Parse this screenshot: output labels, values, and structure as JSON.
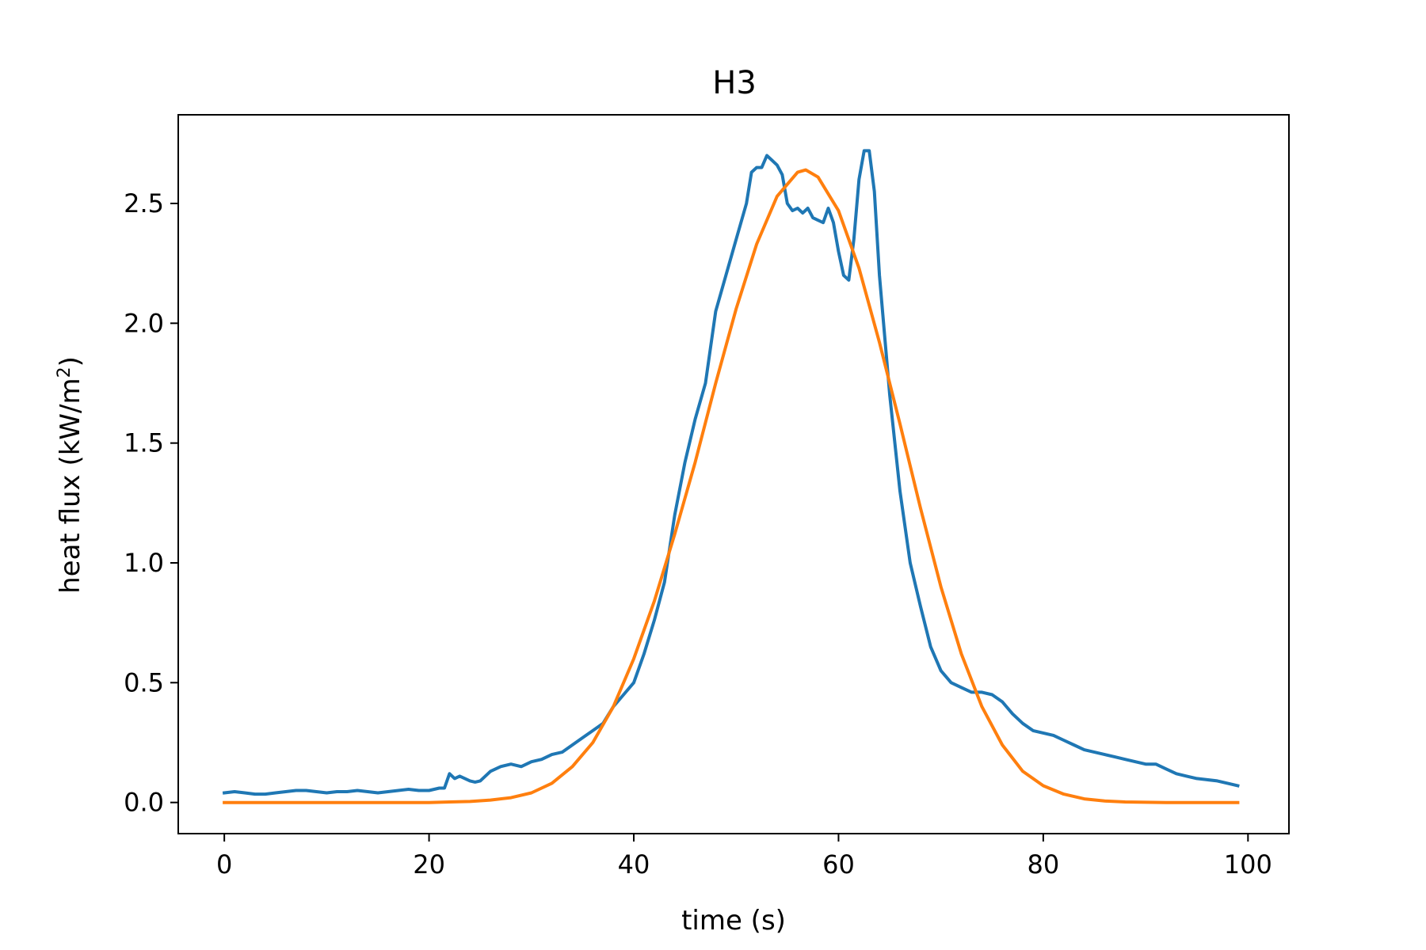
{
  "chart_data": {
    "type": "line",
    "title": "H3",
    "xlabel": "time (s)",
    "ylabel_main": "heat flux (kW/m",
    "ylabel_sup": "2",
    "ylabel_close": ")",
    "xlim": [
      -4.5,
      104
    ],
    "ylim": [
      -0.13,
      2.87
    ],
    "xticks": [
      0,
      20,
      40,
      60,
      80,
      100
    ],
    "yticks": [
      0.0,
      0.5,
      1.0,
      1.5,
      2.0,
      2.5
    ],
    "xtick_labels": [
      "0",
      "20",
      "40",
      "60",
      "80",
      "100"
    ],
    "ytick_labels": [
      "0.0",
      "0.5",
      "1.0",
      "1.5",
      "2.0",
      "2.5"
    ],
    "grid": false,
    "series": [
      {
        "color": "#1f77b4",
        "x": [
          0,
          1,
          2,
          3,
          4,
          5,
          6,
          7,
          8,
          9,
          10,
          11,
          12,
          13,
          14,
          15,
          16,
          17,
          18,
          19,
          20,
          21,
          21.5,
          22,
          22.5,
          23,
          23.5,
          24,
          24.5,
          25,
          26,
          27,
          28,
          29,
          30,
          31,
          32,
          33,
          34,
          35,
          36,
          37,
          38,
          39,
          40,
          41,
          42,
          43,
          44,
          45,
          46,
          47,
          48,
          49,
          50,
          51,
          51.5,
          52,
          52.5,
          53,
          53.5,
          54,
          54.5,
          55,
          55.5,
          56,
          56.5,
          57,
          57.5,
          58,
          58.5,
          59,
          59.5,
          60,
          60.5,
          61,
          61.5,
          62,
          62.5,
          63,
          63.5,
          64,
          65,
          66,
          67,
          68,
          69,
          70,
          71,
          72,
          73,
          74,
          75,
          76,
          77,
          78,
          79,
          80,
          81,
          82,
          83,
          84,
          85,
          86,
          87,
          88,
          89,
          90,
          91,
          92,
          93,
          94,
          95,
          96,
          97,
          98,
          99
        ],
        "y": [
          0.04,
          0.045,
          0.04,
          0.035,
          0.035,
          0.04,
          0.045,
          0.05,
          0.05,
          0.045,
          0.04,
          0.045,
          0.045,
          0.05,
          0.045,
          0.04,
          0.045,
          0.05,
          0.055,
          0.05,
          0.05,
          0.06,
          0.06,
          0.12,
          0.1,
          0.11,
          0.1,
          0.09,
          0.085,
          0.09,
          0.13,
          0.15,
          0.16,
          0.15,
          0.17,
          0.18,
          0.2,
          0.21,
          0.24,
          0.27,
          0.3,
          0.33,
          0.4,
          0.45,
          0.5,
          0.62,
          0.76,
          0.92,
          1.2,
          1.42,
          1.6,
          1.75,
          2.05,
          2.2,
          2.35,
          2.5,
          2.63,
          2.65,
          2.65,
          2.7,
          2.68,
          2.66,
          2.62,
          2.5,
          2.47,
          2.48,
          2.46,
          2.48,
          2.44,
          2.43,
          2.42,
          2.48,
          2.42,
          2.3,
          2.2,
          2.18,
          2.35,
          2.6,
          2.72,
          2.72,
          2.55,
          2.2,
          1.7,
          1.3,
          1.0,
          0.82,
          0.65,
          0.55,
          0.5,
          0.48,
          0.46,
          0.46,
          0.45,
          0.42,
          0.37,
          0.33,
          0.3,
          0.29,
          0.28,
          0.26,
          0.24,
          0.22,
          0.21,
          0.2,
          0.19,
          0.18,
          0.17,
          0.16,
          0.16,
          0.14,
          0.12,
          0.11,
          0.1,
          0.095,
          0.09,
          0.08,
          0.07
        ]
      },
      {
        "color": "#ff7f0e",
        "x": [
          0,
          2,
          4,
          6,
          8,
          10,
          12,
          14,
          16,
          18,
          20,
          22,
          24,
          26,
          28,
          30,
          32,
          34,
          36,
          38,
          40,
          42,
          44,
          46,
          48,
          50,
          52,
          54,
          56,
          56.8,
          58,
          60,
          62,
          64,
          66,
          68,
          70,
          72,
          74,
          76,
          78,
          80,
          82,
          84,
          86,
          88,
          90,
          92,
          94,
          96,
          98,
          99
        ],
        "y": [
          0,
          0,
          0,
          0,
          0,
          0,
          0,
          0,
          0,
          0,
          0,
          0.002,
          0.004,
          0.01,
          0.02,
          0.04,
          0.08,
          0.15,
          0.25,
          0.4,
          0.6,
          0.84,
          1.12,
          1.42,
          1.75,
          2.06,
          2.33,
          2.53,
          2.63,
          2.64,
          2.61,
          2.47,
          2.23,
          1.92,
          1.58,
          1.23,
          0.9,
          0.62,
          0.4,
          0.24,
          0.13,
          0.07,
          0.035,
          0.015,
          0.006,
          0.002,
          0.001,
          0,
          0,
          0,
          0,
          0
        ]
      }
    ]
  }
}
